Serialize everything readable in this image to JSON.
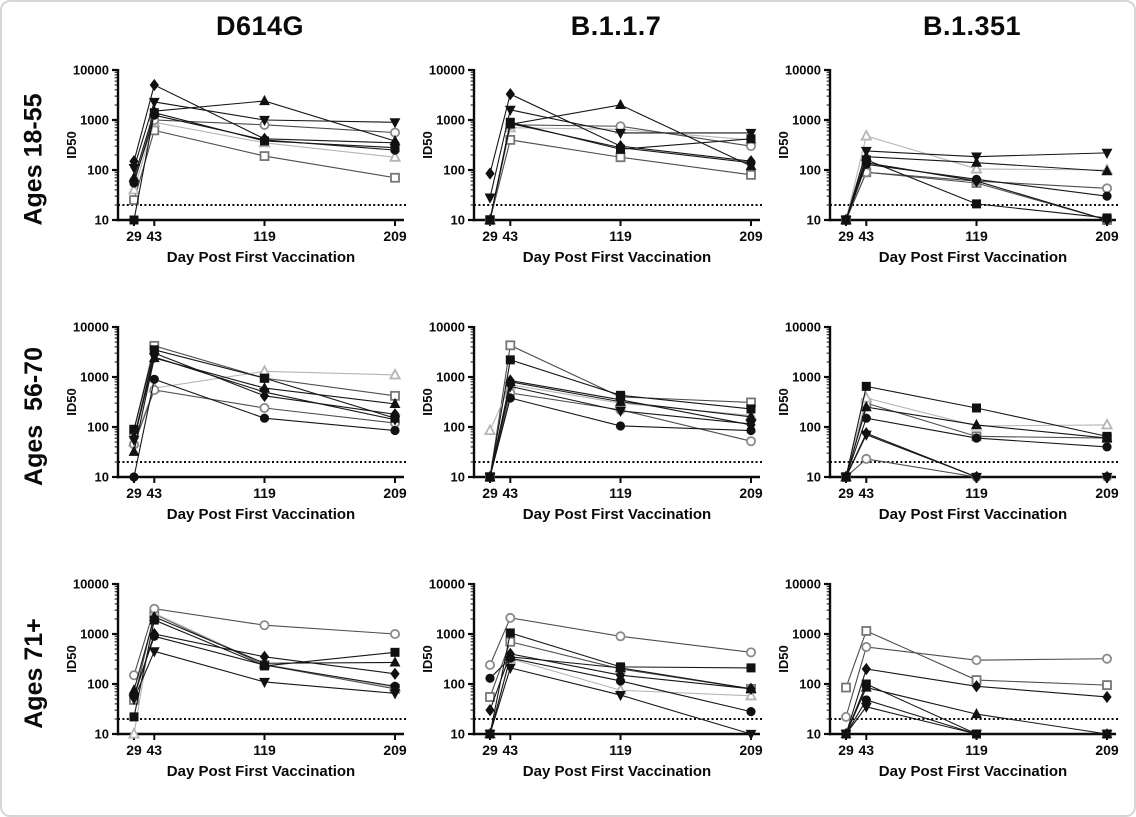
{
  "figure": {
    "column_titles": [
      "D614G",
      "B.1.1.7",
      "B.1.351"
    ],
    "row_titles": [
      "Ages 18-55",
      "Ages  56-70",
      "Ages 71+"
    ]
  },
  "chart_data": {
    "type": "line",
    "x": [
      29,
      43,
      119,
      209
    ],
    "x_tick_labels": [
      "29",
      "43",
      "119",
      "209"
    ],
    "xlabel": "Day Post First Vaccination",
    "ylabel": "ID50",
    "yscale": "log",
    "ylim": [
      10,
      10000
    ],
    "yticks": [
      10,
      100,
      1000,
      10000
    ],
    "ytick_labels": [
      "10",
      "100",
      "1000",
      "10000"
    ],
    "detection_limit": 20,
    "grid": false,
    "legend": "none",
    "columns": [
      "D614G",
      "B.1.1.7",
      "B.1.351"
    ],
    "rows": [
      "Ages 18-55",
      "Ages  56-70",
      "Ages 71+"
    ],
    "colors": {
      "axis": "#0a0a0a",
      "filled_marker": "#111111",
      "open_gray": "#7e7e7e",
      "open_light_gray": "#b5b5b5",
      "frame_border": "#d6d6d6"
    },
    "marker_styles": {
      "filled-circle": {
        "shape": "circle",
        "fill": "#111111",
        "stroke": "#111111",
        "line": "#161616"
      },
      "filled-square": {
        "shape": "square",
        "fill": "#111111",
        "stroke": "#111111",
        "line": "#161616"
      },
      "filled-triangle-up": {
        "shape": "triangle-up",
        "fill": "#111111",
        "stroke": "#111111",
        "line": "#161616"
      },
      "filled-triangle-down": {
        "shape": "triangle-down",
        "fill": "#111111",
        "stroke": "#111111",
        "line": "#161616"
      },
      "filled-diamond": {
        "shape": "diamond",
        "fill": "#111111",
        "stroke": "#111111",
        "line": "#161616"
      },
      "open-circle": {
        "shape": "circle",
        "fill": "#ffffff",
        "stroke": "#8a8a8a",
        "line": "#4d4d4d"
      },
      "open-square": {
        "shape": "square",
        "fill": "#ffffff",
        "stroke": "#767676",
        "line": "#4d4d4d"
      },
      "open-triangle-up": {
        "shape": "triangle-up",
        "fill": "#ffffff",
        "stroke": "#b5b5b5",
        "line": "#b5b5b5"
      }
    },
    "panels": [
      {
        "r": 0,
        "c": 0,
        "row": "Ages 18-55",
        "col": "D614G",
        "series": [
          {
            "marker": "filled-diamond",
            "values": [
              150,
              5000,
              420,
              350
            ]
          },
          {
            "marker": "filled-triangle-down",
            "values": [
              110,
              2300,
              1000,
              900
            ]
          },
          {
            "marker": "filled-triangle-up",
            "values": [
              70,
              1500,
              2400,
              380
            ]
          },
          {
            "marker": "filled-square",
            "values": [
              10,
              1400,
              380,
              280
            ]
          },
          {
            "marker": "filled-circle",
            "values": [
              55,
              1250,
              400,
              250
            ]
          },
          {
            "marker": "open-circle",
            "values": [
              60,
              1000,
              800,
              560
            ]
          },
          {
            "marker": "open-triangle-up",
            "values": [
              40,
              900,
              350,
              180
            ]
          },
          {
            "marker": "open-square",
            "values": [
              25,
              620,
              190,
              70
            ]
          }
        ]
      },
      {
        "r": 0,
        "c": 1,
        "row": "Ages 18-55",
        "col": "B.1.1.7",
        "series": [
          {
            "marker": "filled-diamond",
            "values": [
              85,
              3300,
              300,
              150
            ]
          },
          {
            "marker": "filled-triangle-down",
            "values": [
              28,
              1600,
              550,
              550
            ]
          },
          {
            "marker": "filled-triangle-up",
            "values": [
              10,
              820,
              2000,
              120
            ]
          },
          {
            "marker": "filled-square",
            "values": [
              10,
              900,
              260,
              420
            ]
          },
          {
            "marker": "filled-circle",
            "values": [
              10,
              850,
              280,
              140
            ]
          },
          {
            "marker": "open-circle",
            "values": [
              10,
              800,
              750,
              300
            ]
          },
          {
            "marker": "open-triangle-up",
            "values": [
              10,
              700,
              650,
              400
            ]
          },
          {
            "marker": "open-square",
            "values": [
              10,
              400,
              180,
              80
            ]
          }
        ]
      },
      {
        "r": 0,
        "c": 2,
        "row": "Ages 18-55",
        "col": "B.1.351",
        "series": [
          {
            "marker": "filled-diamond",
            "values": [
              10,
              140,
              60,
              10
            ]
          },
          {
            "marker": "filled-triangle-down",
            "values": [
              10,
              240,
              185,
              220
            ]
          },
          {
            "marker": "filled-triangle-up",
            "values": [
              10,
              185,
              140,
              95
            ]
          },
          {
            "marker": "filled-square",
            "values": [
              10,
              160,
              21,
              11
            ]
          },
          {
            "marker": "filled-circle",
            "values": [
              10,
              130,
              65,
              30
            ]
          },
          {
            "marker": "open-circle",
            "values": [
              10,
              90,
              60,
              43
            ]
          },
          {
            "marker": "open-triangle-up",
            "values": [
              10,
              480,
              105,
              100
            ]
          },
          {
            "marker": "open-square",
            "values": [
              10,
              90,
              55,
              10
            ]
          }
        ]
      },
      {
        "r": 1,
        "c": 0,
        "row": "Ages  56-70",
        "col": "D614G",
        "series": [
          {
            "marker": "filled-diamond",
            "values": [
              60,
              3000,
              420,
              180
            ]
          },
          {
            "marker": "filled-triangle-down",
            "values": [
              55,
              2500,
              500,
              140
            ]
          },
          {
            "marker": "filled-triangle-up",
            "values": [
              32,
              2400,
              600,
              290
            ]
          },
          {
            "marker": "filled-square",
            "values": [
              90,
              3500,
              950,
              150
            ]
          },
          {
            "marker": "filled-circle",
            "values": [
              10,
              900,
              150,
              85
            ]
          },
          {
            "marker": "open-circle",
            "values": [
              45,
              550,
              240,
              120
            ]
          },
          {
            "marker": "open-triangle-up",
            "values": [
              50,
              600,
              1300,
              1100
            ]
          },
          {
            "marker": "open-square",
            "values": [
              85,
              4200,
              950,
              420
            ]
          }
        ]
      },
      {
        "r": 1,
        "c": 1,
        "row": "Ages  56-70",
        "col": "B.1.1.7",
        "series": [
          {
            "marker": "filled-diamond",
            "values": [
              10,
              850,
              350,
              110
            ]
          },
          {
            "marker": "filled-triangle-down",
            "values": [
              10,
              650,
              210,
              115
            ]
          },
          {
            "marker": "filled-triangle-up",
            "values": [
              10,
              800,
              320,
              160
            ]
          },
          {
            "marker": "filled-square",
            "values": [
              10,
              2200,
              430,
              230
            ]
          },
          {
            "marker": "filled-circle",
            "values": [
              10,
              380,
              105,
              85
            ]
          },
          {
            "marker": "open-circle",
            "values": [
              10,
              480,
              220,
              52
            ]
          },
          {
            "marker": "open-triangle-up",
            "values": [
              85,
              700,
              300,
              170
            ]
          },
          {
            "marker": "open-square",
            "values": [
              10,
              4300,
              400,
              310
            ]
          }
        ]
      },
      {
        "r": 1,
        "c": 2,
        "row": "Ages  56-70",
        "col": "B.1.351",
        "series": [
          {
            "marker": "filled-diamond",
            "values": [
              10,
              75,
              10,
              10
            ]
          },
          {
            "marker": "filled-triangle-down",
            "values": [
              10,
              70,
              10,
              10
            ]
          },
          {
            "marker": "filled-triangle-up",
            "values": [
              10,
              250,
              110,
              60
            ]
          },
          {
            "marker": "filled-square",
            "values": [
              10,
              650,
              240,
              65
            ]
          },
          {
            "marker": "filled-circle",
            "values": [
              10,
              150,
              60,
              40
            ]
          },
          {
            "marker": "open-circle",
            "values": [
              10,
              23,
              10,
              10
            ]
          },
          {
            "marker": "open-triangle-up",
            "values": [
              10,
              380,
              105,
              110
            ]
          },
          {
            "marker": "open-square",
            "values": [
              10,
              300,
              65,
              60
            ]
          }
        ]
      },
      {
        "r": 2,
        "c": 0,
        "row": "Ages 71+",
        "col": "D614G",
        "series": [
          {
            "marker": "filled-diamond",
            "values": [
              55,
              1000,
              350,
              160
            ]
          },
          {
            "marker": "filled-triangle-down",
            "values": [
              50,
              450,
              110,
              65
            ]
          },
          {
            "marker": "filled-triangle-up",
            "values": [
              75,
              2200,
              260,
              270
            ]
          },
          {
            "marker": "filled-square",
            "values": [
              22,
              1900,
              230,
              430
            ]
          },
          {
            "marker": "filled-circle",
            "values": [
              60,
              900,
              240,
              90
            ]
          },
          {
            "marker": "open-circle",
            "values": [
              150,
              3200,
              1500,
              1000
            ]
          },
          {
            "marker": "open-triangle-up",
            "values": [
              10,
              2600,
              250,
              85
            ]
          },
          {
            "marker": "open-square",
            "values": [
              48,
              2500,
              240,
              80
            ]
          }
        ]
      },
      {
        "r": 2,
        "c": 1,
        "row": "Ages 71+",
        "col": "B.1.1.7",
        "series": [
          {
            "marker": "filled-diamond",
            "values": [
              30,
              400,
              150,
              80
            ]
          },
          {
            "marker": "filled-triangle-down",
            "values": [
              10,
              210,
              60,
              10
            ]
          },
          {
            "marker": "filled-triangle-up",
            "values": [
              10,
              350,
              210,
              80
            ]
          },
          {
            "marker": "filled-square",
            "values": [
              10,
              1050,
              220,
              210
            ]
          },
          {
            "marker": "filled-circle",
            "values": [
              130,
              330,
              115,
              28
            ]
          },
          {
            "marker": "open-circle",
            "values": [
              240,
              2100,
              900,
              430
            ]
          },
          {
            "marker": "open-triangle-up",
            "values": [
              10,
              320,
              75,
              58
            ]
          },
          {
            "marker": "open-square",
            "values": [
              55,
              700,
              200,
              80
            ]
          }
        ]
      },
      {
        "r": 2,
        "c": 2,
        "row": "Ages 71+",
        "col": "B.1.351",
        "series": [
          {
            "marker": "filled-diamond",
            "values": [
              10,
              200,
              90,
              55
            ]
          },
          {
            "marker": "filled-triangle-down",
            "values": [
              10,
              35,
              10,
              10
            ]
          },
          {
            "marker": "filled-triangle-up",
            "values": [
              10,
              85,
              25,
              10
            ]
          },
          {
            "marker": "filled-square",
            "values": [
              10,
              100,
              10,
              10
            ]
          },
          {
            "marker": "filled-circle",
            "values": [
              10,
              48,
              10,
              10
            ]
          },
          {
            "marker": "open-circle",
            "values": [
              22,
              550,
              300,
              320
            ]
          },
          {
            "marker": "open-square",
            "values": [
              85,
              1150,
              120,
              95
            ]
          }
        ]
      }
    ]
  }
}
